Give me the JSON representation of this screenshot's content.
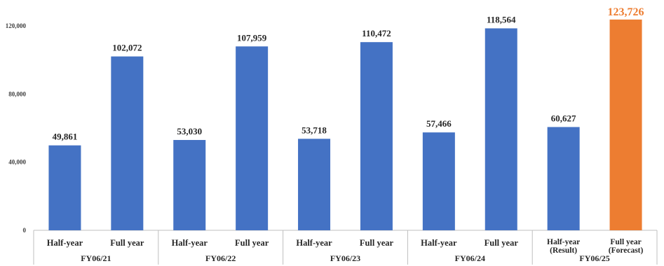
{
  "chart_data": {
    "type": "bar",
    "title": "",
    "xlabel": "",
    "ylabel": "",
    "ylim": [
      0,
      120000
    ],
    "yticks": [
      0,
      40000,
      80000,
      120000
    ],
    "ytick_labels": [
      "0",
      "40,000",
      "80,000",
      "120,000"
    ],
    "grid": false,
    "legend": "none",
    "colors": {
      "default": "#4472C4",
      "highlight": "#ED7D31"
    },
    "groups": [
      {
        "label": "FY06/21",
        "bars": [
          {
            "category": "Half-year",
            "value": 49861,
            "value_label": "49,861",
            "highlight": false
          },
          {
            "category": "Full year",
            "value": 102072,
            "value_label": "102,072",
            "highlight": false
          }
        ]
      },
      {
        "label": "FY06/22",
        "bars": [
          {
            "category": "Half-year",
            "value": 53030,
            "value_label": "53,030",
            "highlight": false
          },
          {
            "category": "Full year",
            "value": 107959,
            "value_label": "107,959",
            "highlight": false
          }
        ]
      },
      {
        "label": "FY06/23",
        "bars": [
          {
            "category": "Half-year",
            "value": 53718,
            "value_label": "53,718",
            "highlight": false
          },
          {
            "category": "Full year",
            "value": 110472,
            "value_label": "110,472",
            "highlight": false
          }
        ]
      },
      {
        "label": "FY06/24",
        "bars": [
          {
            "category": "Half-year",
            "value": 57466,
            "value_label": "57,466",
            "highlight": false
          },
          {
            "category": "Full year",
            "value": 118564,
            "value_label": "118,564",
            "highlight": false
          }
        ]
      },
      {
        "label": "FY06/25",
        "bars": [
          {
            "category": "Half-year",
            "subcategory": "(Result)",
            "value": 60627,
            "value_label": "60,627",
            "highlight": false
          },
          {
            "category": "Full year",
            "subcategory": "(Forecast)",
            "value": 123726,
            "value_label": "123,726",
            "highlight": true
          }
        ]
      }
    ]
  }
}
